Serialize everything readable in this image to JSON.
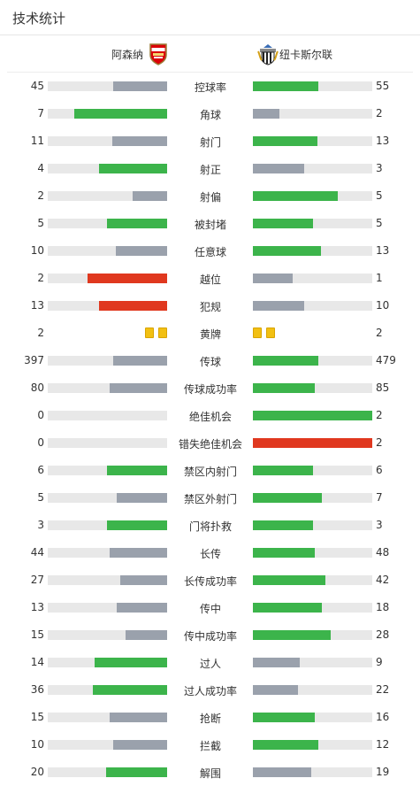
{
  "header": {
    "title": "技术统计"
  },
  "teams": {
    "home": {
      "name": "阿森纳",
      "crest": "arsenal-crest-icon"
    },
    "away": {
      "name": "纽卡斯尔联",
      "crest": "newcastle-crest-icon"
    }
  },
  "colors": {
    "win": "#3cb44b",
    "lose": "#9aa1ac",
    "red": "#e0381f",
    "track": "#e8e8e8",
    "yellow_card": "#f2c012"
  },
  "stats": [
    {
      "label": "控球率",
      "home": "45",
      "away": "55",
      "home_frac": 0.45,
      "away_frac": 0.55,
      "home_color": "lose",
      "away_color": "win"
    },
    {
      "label": "角球",
      "home": "7",
      "away": "2",
      "home_frac": 0.78,
      "away_frac": 0.22,
      "home_color": "win",
      "away_color": "lose"
    },
    {
      "label": "射门",
      "home": "11",
      "away": "13",
      "home_frac": 0.46,
      "away_frac": 0.54,
      "home_color": "lose",
      "away_color": "win"
    },
    {
      "label": "射正",
      "home": "4",
      "away": "3",
      "home_frac": 0.57,
      "away_frac": 0.43,
      "home_color": "win",
      "away_color": "lose"
    },
    {
      "label": "射偏",
      "home": "2",
      "away": "5",
      "home_frac": 0.29,
      "away_frac": 0.71,
      "home_color": "lose",
      "away_color": "win"
    },
    {
      "label": "被封堵",
      "home": "5",
      "away": "5",
      "home_frac": 0.5,
      "away_frac": 0.5,
      "home_color": "win",
      "away_color": "win"
    },
    {
      "label": "任意球",
      "home": "10",
      "away": "13",
      "home_frac": 0.43,
      "away_frac": 0.57,
      "home_color": "lose",
      "away_color": "win"
    },
    {
      "label": "越位",
      "home": "2",
      "away": "1",
      "home_frac": 0.67,
      "away_frac": 0.33,
      "home_color": "red",
      "away_color": "lose"
    },
    {
      "label": "犯规",
      "home": "13",
      "away": "10",
      "home_frac": 0.57,
      "away_frac": 0.43,
      "home_color": "red",
      "away_color": "lose"
    },
    {
      "label": "黄牌",
      "home": "2",
      "away": "2",
      "type": "cards",
      "home_cards": 2,
      "away_cards": 2
    },
    {
      "label": "传球",
      "home": "397",
      "away": "479",
      "home_frac": 0.45,
      "away_frac": 0.55,
      "home_color": "lose",
      "away_color": "win"
    },
    {
      "label": "传球成功率",
      "home": "80",
      "away": "85",
      "home_frac": 0.48,
      "away_frac": 0.52,
      "home_color": "lose",
      "away_color": "win"
    },
    {
      "label": "绝佳机会",
      "home": "0",
      "away": "2",
      "home_frac": 0,
      "away_frac": 1,
      "home_color": "lose",
      "away_color": "win"
    },
    {
      "label": "错失绝佳机会",
      "home": "0",
      "away": "2",
      "home_frac": 0,
      "away_frac": 1,
      "home_color": "lose",
      "away_color": "red"
    },
    {
      "label": "禁区内射门",
      "home": "6",
      "away": "6",
      "home_frac": 0.5,
      "away_frac": 0.5,
      "home_color": "win",
      "away_color": "win"
    },
    {
      "label": "禁区外射门",
      "home": "5",
      "away": "7",
      "home_frac": 0.42,
      "away_frac": 0.58,
      "home_color": "lose",
      "away_color": "win"
    },
    {
      "label": "门将扑救",
      "home": "3",
      "away": "3",
      "home_frac": 0.5,
      "away_frac": 0.5,
      "home_color": "win",
      "away_color": "win"
    },
    {
      "label": "长传",
      "home": "44",
      "away": "48",
      "home_frac": 0.48,
      "away_frac": 0.52,
      "home_color": "lose",
      "away_color": "win"
    },
    {
      "label": "长传成功率",
      "home": "27",
      "away": "42",
      "home_frac": 0.39,
      "away_frac": 0.61,
      "home_color": "lose",
      "away_color": "win"
    },
    {
      "label": "传中",
      "home": "13",
      "away": "18",
      "home_frac": 0.42,
      "away_frac": 0.58,
      "home_color": "lose",
      "away_color": "win"
    },
    {
      "label": "传中成功率",
      "home": "15",
      "away": "28",
      "home_frac": 0.35,
      "away_frac": 0.65,
      "home_color": "lose",
      "away_color": "win"
    },
    {
      "label": "过人",
      "home": "14",
      "away": "9",
      "home_frac": 0.61,
      "away_frac": 0.39,
      "home_color": "win",
      "away_color": "lose"
    },
    {
      "label": "过人成功率",
      "home": "36",
      "away": "22",
      "home_frac": 0.62,
      "away_frac": 0.38,
      "home_color": "win",
      "away_color": "lose"
    },
    {
      "label": "抢断",
      "home": "15",
      "away": "16",
      "home_frac": 0.48,
      "away_frac": 0.52,
      "home_color": "lose",
      "away_color": "win"
    },
    {
      "label": "拦截",
      "home": "10",
      "away": "12",
      "home_frac": 0.45,
      "away_frac": 0.55,
      "home_color": "lose",
      "away_color": "win"
    },
    {
      "label": "解围",
      "home": "20",
      "away": "19",
      "home_frac": 0.51,
      "away_frac": 0.49,
      "home_color": "win",
      "away_color": "lose"
    }
  ]
}
